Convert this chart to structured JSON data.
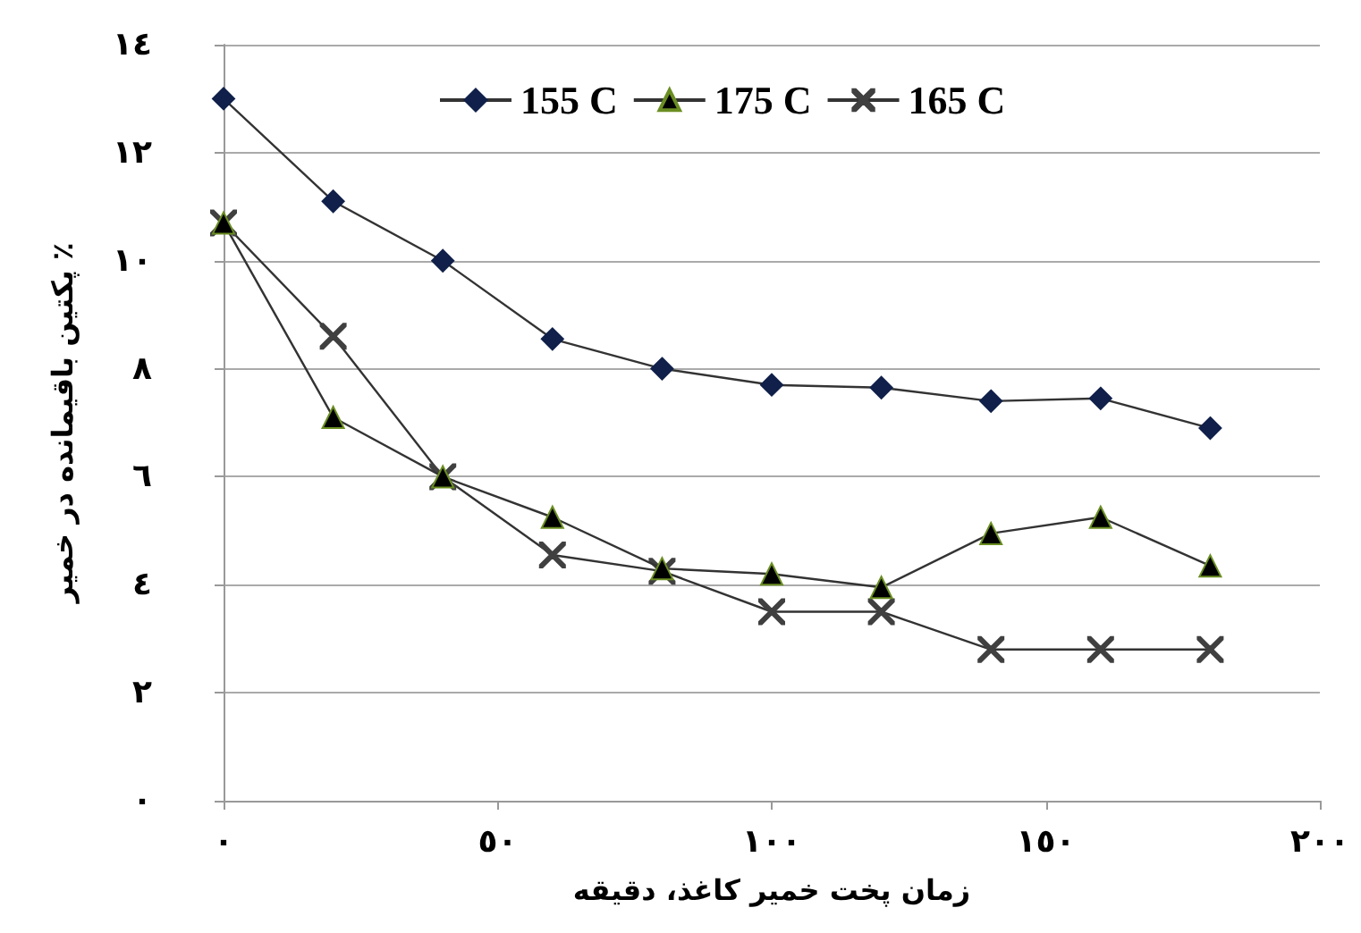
{
  "chart_data": {
    "type": "line",
    "xlabel": "زمان پخت خمیر کاغذ، دقیقه",
    "ylabel": "پکتین باقیمانده در خمیر ٪",
    "x": [
      0,
      20,
      40,
      60,
      80,
      100,
      120,
      140,
      160,
      180
    ],
    "series": [
      {
        "name": "155 C",
        "color": "#10204a",
        "marker": "diamond",
        "values": [
          13.0,
          11.1,
          10.0,
          8.55,
          8.0,
          7.7,
          7.65,
          7.4,
          7.45,
          6.9
        ]
      },
      {
        "name": "175 C",
        "color": "#000000",
        "marker": "triangle",
        "values": [
          10.7,
          7.1,
          6.0,
          5.25,
          4.3,
          4.2,
          3.95,
          4.95,
          5.25,
          4.35
        ]
      },
      {
        "name": "165 C",
        "color": "#404040",
        "marker": "cross",
        "values": [
          10.7,
          8.6,
          6.0,
          4.55,
          4.25,
          3.5,
          3.5,
          2.8,
          2.8,
          2.8
        ]
      }
    ],
    "xlim": [
      0,
      200
    ],
    "xticks": [
      {
        "value": 0,
        "label": "٠"
      },
      {
        "value": 50,
        "label": "٥٠"
      },
      {
        "value": 100,
        "label": "١٠٠"
      },
      {
        "value": 150,
        "label": "١٥٠"
      },
      {
        "value": 200,
        "label": "٢٠٠"
      }
    ],
    "ylim": [
      0,
      14
    ],
    "yticks": [
      {
        "value": 0,
        "label": "٠"
      },
      {
        "value": 2,
        "label": "٢"
      },
      {
        "value": 4,
        "label": "٤"
      },
      {
        "value": 6,
        "label": "٦"
      },
      {
        "value": 8,
        "label": "٨"
      },
      {
        "value": 10,
        "label": "١٠"
      },
      {
        "value": 12,
        "label": "١٢"
      },
      {
        "value": 14,
        "label": "١٤"
      }
    ],
    "grid": "y",
    "legend": "top",
    "line_style": "solid"
  }
}
